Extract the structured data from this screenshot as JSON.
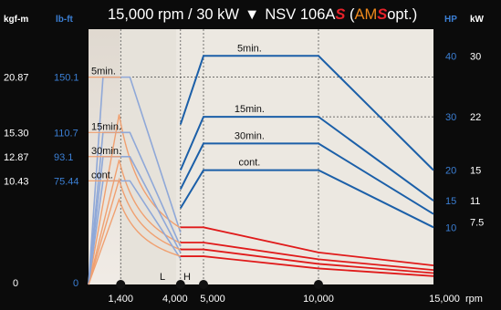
{
  "title": {
    "prefix": "15,000 rpm / 30 kW",
    "arrow": "▼",
    "model": "NSV 106A",
    "model_s": "S",
    "open": " (",
    "am": "AM",
    "am_s": "S",
    "opt": "opt.)"
  },
  "axes": {
    "left_unit_1": "kgf-m",
    "left_unit_2": "lb-ft",
    "right_unit_1": "HP",
    "right_unit_2": "kW",
    "x_unit": "rpm",
    "marker_L": "L",
    "marker_H": "H"
  },
  "colors": {
    "background": "#0b0b0b",
    "plot": "#ece8e1",
    "torque_lines": "#8fa8d8",
    "torque_low_lines": "#f0a070",
    "power_lines": "#1b5fa8",
    "low_winding_power": "#e01a1a",
    "accent_blue": "#3b7fd4",
    "accent_red": "#e8222a",
    "accent_orange": "#f08a1c"
  },
  "chart_data": {
    "type": "line",
    "xlim": [
      0,
      15000
    ],
    "x_ticks": [
      {
        "value": 1400,
        "label": "1,400"
      },
      {
        "value": 4000,
        "label": "4,000"
      },
      {
        "value": 5000,
        "label": "5,000"
      },
      {
        "value": 10000,
        "label": "10,000"
      },
      {
        "value": 15000,
        "label": "15,000"
      }
    ],
    "winding_switch": {
      "L": 4000,
      "H": 5000
    },
    "torque_axis": {
      "ylim_kgfm": [
        0,
        25.7
      ],
      "ticks": [
        {
          "kgfm": "0",
          "lbft": "0",
          "value": 0
        },
        {
          "kgfm": "10.43",
          "lbft": "75.44",
          "value": 10.43
        },
        {
          "kgfm": "12.87",
          "lbft": "93.1",
          "value": 12.87
        },
        {
          "kgfm": "15.30",
          "lbft": "110.7",
          "value": 15.3
        },
        {
          "kgfm": "20.87",
          "lbft": "150.1",
          "value": 20.87
        }
      ]
    },
    "power_axis": {
      "ylim_kw": [
        0,
        33.5
      ],
      "ticks_hp": [
        "10",
        "15",
        "20",
        "30",
        "40"
      ],
      "ticks_kw": [
        {
          "label": "7.5",
          "value": 7.5
        },
        {
          "label": "11",
          "value": 11
        },
        {
          "label": "15",
          "value": 15
        },
        {
          "label": "22",
          "value": 22
        },
        {
          "label": "30",
          "value": 30
        }
      ]
    },
    "torque_series": [
      {
        "name": "5min.",
        "kgfm": 20.87,
        "power_kw": 30
      },
      {
        "name": "15min.",
        "kgfm": 15.3,
        "power_kw": 22
      },
      {
        "name": "30min.",
        "kgfm": 12.87,
        "power_kw": 18.5
      },
      {
        "name": "cont.",
        "kgfm": 10.43,
        "power_kw": 15
      }
    ],
    "power_series": [
      {
        "name": "5min.",
        "x": [
          4000,
          5000,
          10000,
          15000
        ],
        "y": [
          21,
          30,
          30,
          15
        ]
      },
      {
        "name": "15min.",
        "x": [
          4000,
          5000,
          10000,
          15000
        ],
        "y": [
          15,
          22,
          22,
          11
        ]
      },
      {
        "name": "30min.",
        "x": [
          4000,
          5000,
          10000,
          15000
        ],
        "y": [
          12.5,
          18.5,
          18.5,
          9.25
        ]
      },
      {
        "name": "cont.",
        "x": [
          4000,
          5000,
          10000,
          15000
        ],
        "y": [
          10,
          15,
          15,
          7.5
        ]
      }
    ],
    "low_winding_power_series": [
      {
        "x": [
          4000,
          5000,
          10000,
          15000
        ],
        "y": [
          7.5,
          7.5,
          4.2,
          2.5
        ]
      },
      {
        "x": [
          4000,
          5000,
          10000,
          15000
        ],
        "y": [
          5.5,
          5.5,
          3.3,
          1.9
        ]
      },
      {
        "x": [
          4000,
          5000,
          10000,
          15000
        ],
        "y": [
          4.6,
          4.6,
          2.7,
          1.5
        ]
      },
      {
        "x": [
          4000,
          5000,
          10000,
          15000
        ],
        "y": [
          3.7,
          3.7,
          2.1,
          1.1
        ]
      }
    ]
  }
}
